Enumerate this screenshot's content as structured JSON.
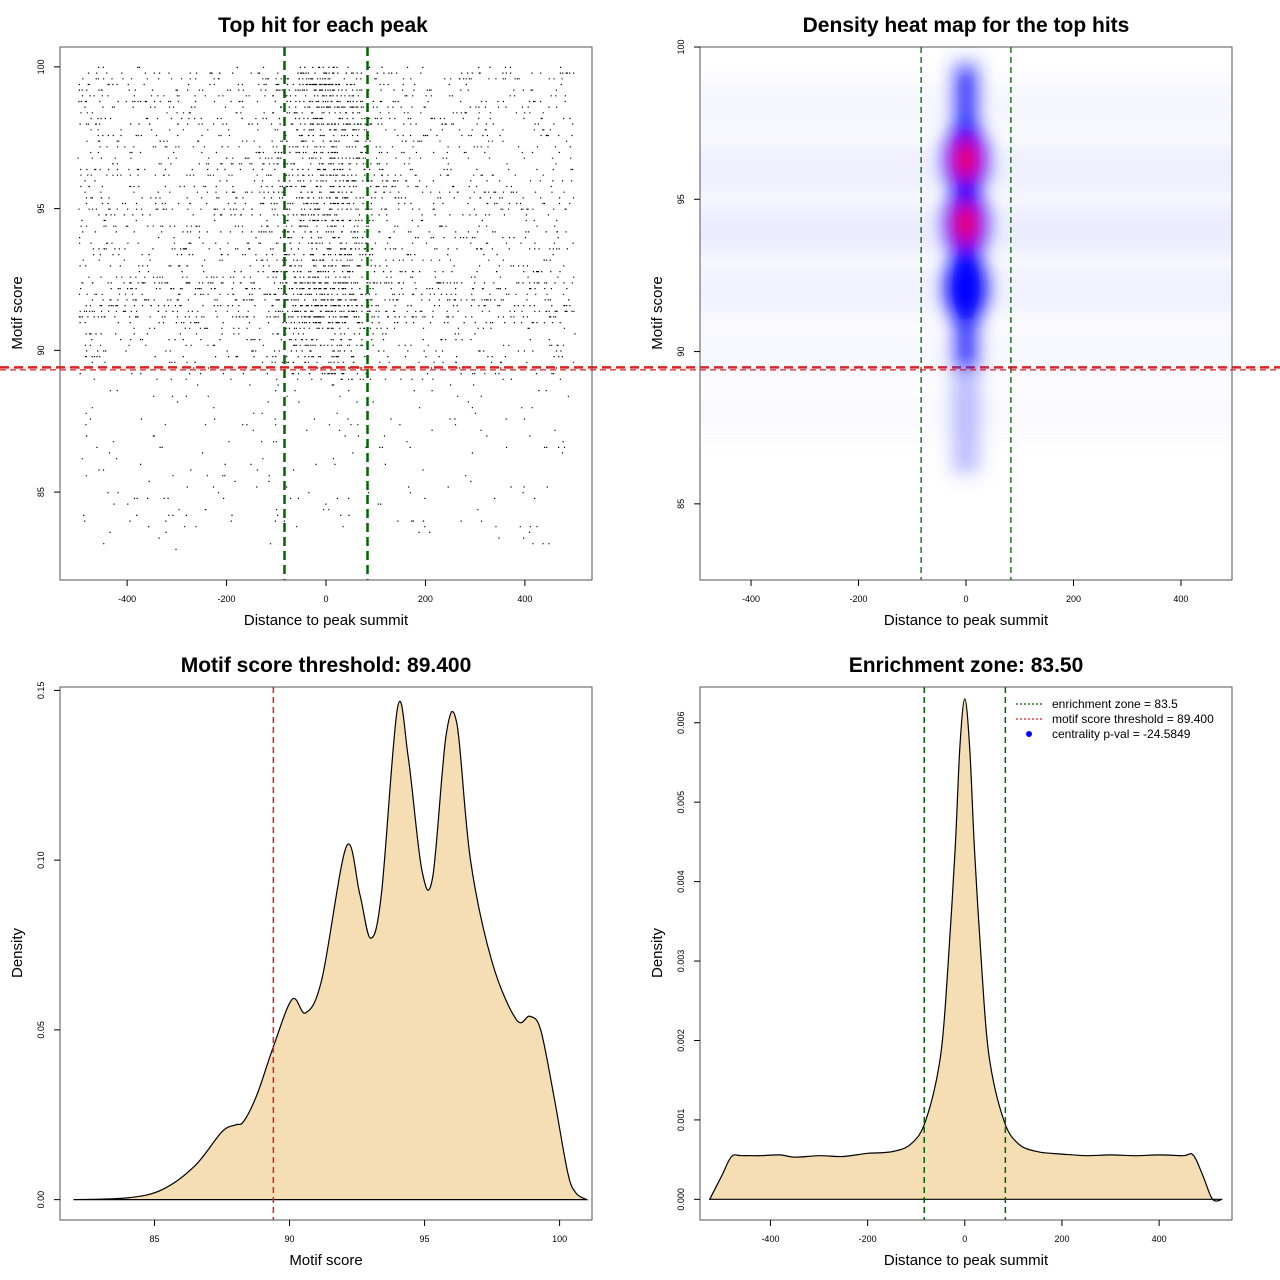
{
  "chart_data": [
    {
      "id": "scatter",
      "type": "scatter",
      "title": "Top hit for each peak",
      "xlabel": "Distance to peak summit",
      "ylabel": "Motif score",
      "xlim": [
        -535,
        535
      ],
      "ylim": [
        81.9,
        100.7
      ],
      "x_ticks": [
        "-400",
        "-200",
        "0",
        "200",
        "400"
      ],
      "x_tick_values": [
        -400,
        -200,
        0,
        200,
        400
      ],
      "y_ticks": [
        "85",
        "90",
        "95",
        "100"
      ],
      "y_tick_values": [
        85,
        90,
        95,
        100
      ],
      "vlines": [
        {
          "x": -83.5,
          "color": "#006400",
          "style": "dashed"
        },
        {
          "x": 83.5,
          "color": "#006400",
          "style": "dashed"
        }
      ],
      "hlines": [
        {
          "y": 89.4,
          "color": "#dd2222",
          "style": "dashed"
        }
      ],
      "points_summary": {
        "n_points_drawn": 5200,
        "x_range": [
          -500,
          500
        ],
        "central_enrichment_sd": 60
      }
    },
    {
      "id": "heatmap",
      "type": "heatmap",
      "title": "Density heat map for the top hits",
      "xlabel": "Distance to peak summit",
      "ylabel": "Motif score",
      "xlim": [
        -495,
        495
      ],
      "ylim": [
        82.5,
        100
      ],
      "x_ticks": [
        "-400",
        "-200",
        "0",
        "200",
        "400"
      ],
      "x_tick_values": [
        -400,
        -200,
        0,
        200,
        400
      ],
      "y_ticks": [
        "85",
        "90",
        "95",
        "100"
      ],
      "y_tick_values": [
        85,
        90,
        95,
        100
      ],
      "palette": [
        "#ffffff",
        "#0000ff",
        "#ff0000"
      ],
      "density_peaks": [
        {
          "x": 0,
          "y": 96.3,
          "level": "high"
        },
        {
          "x": 0,
          "y": 94.2,
          "level": "high"
        },
        {
          "x": 0,
          "y": 92.1,
          "level": "medium"
        }
      ],
      "vlines": [
        {
          "x": -83.5,
          "color": "#006400",
          "style": "dashed"
        },
        {
          "x": 83.5,
          "color": "#006400",
          "style": "dashed"
        }
      ],
      "hlines": [
        {
          "y": 89.4,
          "color": "#dd2222",
          "style": "dashed"
        }
      ]
    },
    {
      "id": "score_density",
      "type": "area",
      "title": "Motif score threshold: 89.400",
      "xlabel": "Motif score",
      "ylabel": "Density",
      "xlim": [
        81.5,
        101.2
      ],
      "ylim": [
        -0.006,
        0.151
      ],
      "x_ticks": [
        "85",
        "90",
        "95",
        "100"
      ],
      "x_tick_values": [
        85,
        90,
        95,
        100
      ],
      "y_ticks": [
        "0.00",
        "0.05",
        "0.10",
        "0.15"
      ],
      "y_tick_values": [
        0,
        0.05,
        0.1,
        0.15
      ],
      "fill": "#f5deb3",
      "x": [
        82.0,
        84.0,
        85.3,
        86.5,
        87.5,
        88.0,
        88.3,
        88.8,
        89.4,
        90.1,
        90.6,
        91.2,
        92.1,
        92.6,
        93.0,
        93.4,
        94.0,
        94.4,
        94.9,
        95.3,
        95.8,
        96.2,
        96.7,
        97.5,
        98.4,
        98.9,
        99.3,
        99.8,
        100.3,
        100.6,
        101.0
      ],
      "values": [
        0.0,
        0.0005,
        0.003,
        0.01,
        0.02,
        0.022,
        0.023,
        0.031,
        0.045,
        0.059,
        0.055,
        0.065,
        0.104,
        0.09,
        0.077,
        0.09,
        0.145,
        0.13,
        0.097,
        0.095,
        0.137,
        0.14,
        0.1,
        0.07,
        0.053,
        0.054,
        0.05,
        0.03,
        0.008,
        0.002,
        0.0
      ],
      "vlines": [
        {
          "x": 89.4,
          "color": "#dd2222",
          "style": "dashed"
        }
      ]
    },
    {
      "id": "distance_density",
      "type": "area",
      "title": "Enrichment zone: 83.50",
      "xlabel": "Distance to peak summit",
      "ylabel": "Density",
      "xlim": [
        -545,
        550
      ],
      "ylim": [
        -0.00026,
        0.00645
      ],
      "x_ticks": [
        "-400",
        "-200",
        "0",
        "200",
        "400"
      ],
      "x_tick_values": [
        -400,
        -200,
        0,
        200,
        400
      ],
      "y_ticks": [
        "0.000",
        "0.001",
        "0.002",
        "0.003",
        "0.004",
        "0.005",
        "0.006"
      ],
      "y_tick_values": [
        0,
        0.001,
        0.002,
        0.003,
        0.004,
        0.005,
        0.006
      ],
      "fill": "#f5deb3",
      "x": [
        -525,
        -500,
        -480,
        -460,
        -420,
        -380,
        -350,
        -300,
        -250,
        -200,
        -150,
        -110,
        -80,
        -50,
        -35,
        -20,
        -10,
        0,
        10,
        20,
        35,
        50,
        80,
        110,
        150,
        200,
        250,
        300,
        350,
        400,
        450,
        470,
        490,
        510,
        530
      ],
      "values": [
        0,
        0.0003,
        0.00054,
        0.00055,
        0.00055,
        0.00056,
        0.00053,
        0.00055,
        0.00054,
        0.00058,
        0.0006,
        0.0007,
        0.001,
        0.0018,
        0.0029,
        0.0044,
        0.0057,
        0.0063,
        0.0057,
        0.0044,
        0.0029,
        0.0018,
        0.001,
        0.0007,
        0.0006,
        0.00057,
        0.00055,
        0.00056,
        0.00055,
        0.00056,
        0.00055,
        0.00056,
        0.0003,
        0.0,
        0
      ],
      "vlines": [
        {
          "x": -83.5,
          "color": "#006400",
          "style": "dashed"
        },
        {
          "x": 83.5,
          "color": "#006400",
          "style": "dashed"
        }
      ],
      "legend": {
        "placement": "top-right",
        "entries": [
          {
            "label": "enrichment zone = 83.5",
            "color": "#006400",
            "marker": "dotted-line"
          },
          {
            "label": "motif score threshold = 89.400",
            "color": "#dd2222",
            "marker": "dotted-line"
          },
          {
            "label": "centrality p-val = -24.5849",
            "color": "#0000ff",
            "marker": "dot"
          }
        ]
      }
    }
  ]
}
